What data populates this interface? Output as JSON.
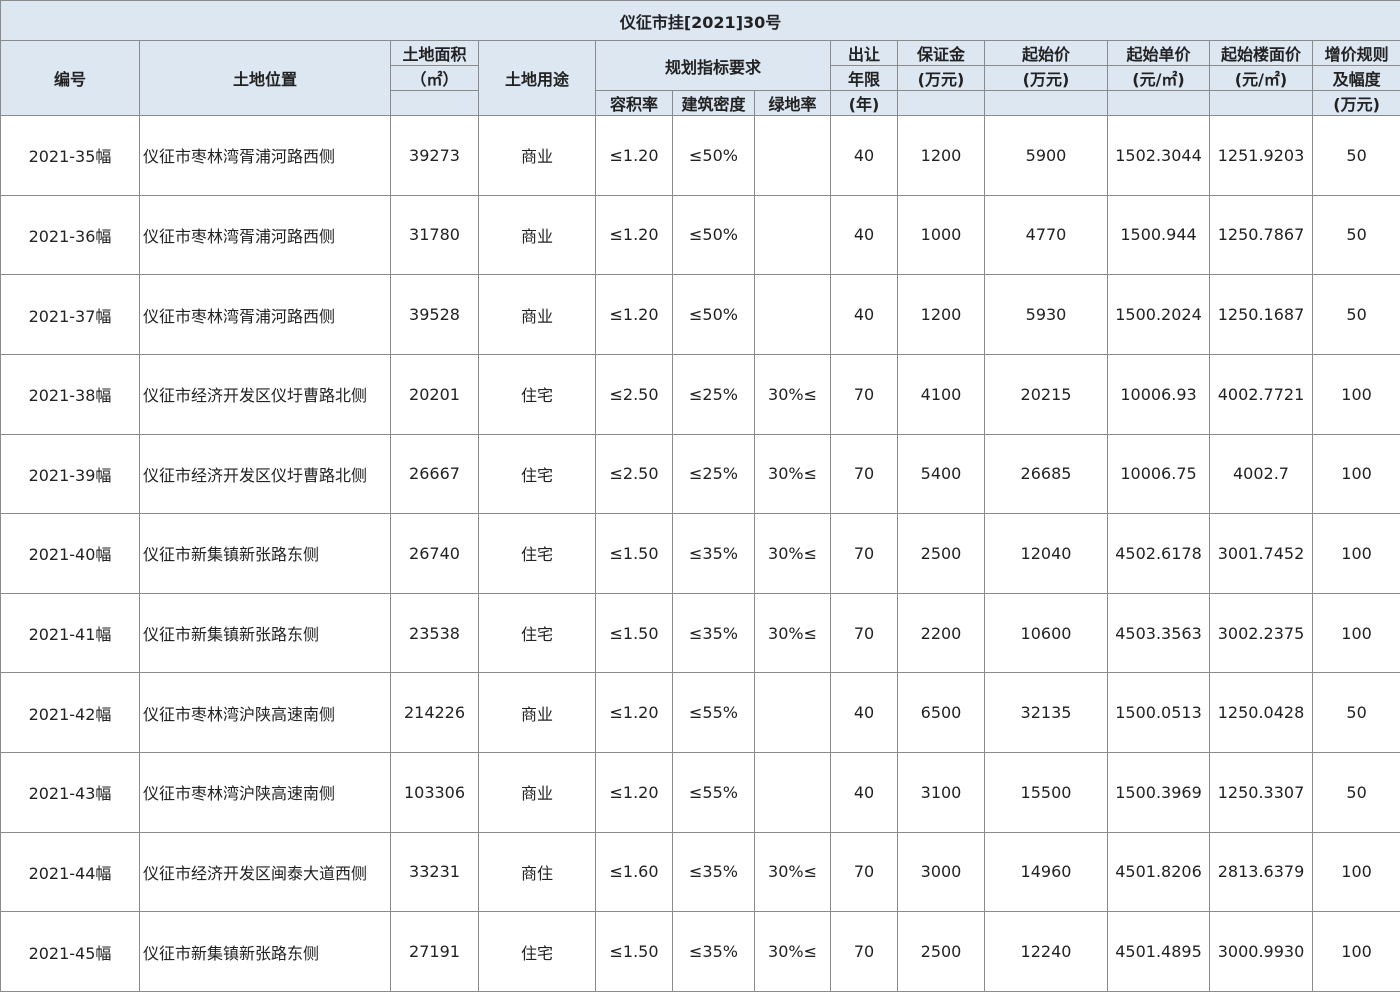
{
  "title": "仪征市挂[2021]30号",
  "header": {
    "id": "编号",
    "location": "土地位置",
    "area": "土地面积",
    "area_unit": "（㎡）",
    "use": "土地用途",
    "planning": "规划指标要求",
    "far": "容积率",
    "density": "建筑密度",
    "green": "绿地率",
    "term": "出让",
    "term2": "年限",
    "term_unit": "(年)",
    "deposit": "保证金",
    "deposit_unit": "(万元)",
    "start": "起始价",
    "start_unit": "(万元)",
    "unit_price": "起始单价",
    "unit_price_unit": "(元/㎡)",
    "floor_price": "起始楼面价",
    "floor_price_unit": "(元/㎡)",
    "increment": "增价规则",
    "increment2": "及幅度",
    "increment_unit": "(万元)"
  },
  "rows": [
    [
      "2021-35幅",
      "仪征市枣林湾胥浦河路西侧",
      "39273",
      "商业",
      "≤1.20",
      "≤50%",
      null,
      "40",
      "1200",
      "5900",
      "1502.3044",
      "1251.9203",
      "50"
    ],
    [
      "2021-36幅",
      "仪征市枣林湾胥浦河路西侧",
      "31780",
      "商业",
      "≤1.20",
      "≤50%",
      null,
      "40",
      "1000",
      "4770",
      "1500.944",
      "1250.7867",
      "50"
    ],
    [
      "2021-37幅",
      "仪征市枣林湾胥浦河路西侧",
      "39528",
      "商业",
      "≤1.20",
      "≤50%",
      null,
      "40",
      "1200",
      "5930",
      "1500.2024",
      "1250.1687",
      "50"
    ],
    [
      "2021-38幅",
      "仪征市经济开发区仪圩曹路北侧",
      "20201",
      "住宅",
      "≤2.50",
      "≤25%",
      "30%≤",
      "70",
      "4100",
      "20215",
      "10006.93",
      "4002.7721",
      "100"
    ],
    [
      "2021-39幅",
      "仪征市经济开发区仪圩曹路北侧",
      "26667",
      "住宅",
      "≤2.50",
      "≤25%",
      "30%≤",
      "70",
      "5400",
      "26685",
      "10006.75",
      "4002.7",
      "100"
    ],
    [
      "2021-40幅",
      "仪征市新集镇新张路东侧",
      "26740",
      "住宅",
      "≤1.50",
      "≤35%",
      "30%≤",
      "70",
      "2500",
      "12040",
      "4502.6178",
      "3001.7452",
      "100"
    ],
    [
      "2021-41幅",
      "仪征市新集镇新张路东侧",
      "23538",
      "住宅",
      "≤1.50",
      "≤35%",
      "30%≤",
      "70",
      "2200",
      "10600",
      "4503.3563",
      "3002.2375",
      "100"
    ],
    [
      "2021-42幅",
      "仪征市枣林湾沪陕高速南侧",
      "214226",
      "商业",
      "≤1.20",
      "≤55%",
      null,
      "40",
      "6500",
      "32135",
      "1500.0513",
      "1250.0428",
      "50"
    ],
    [
      "2021-43幅",
      "仪征市枣林湾沪陕高速南侧",
      "103306",
      "商业",
      "≤1.20",
      "≤55%",
      null,
      "40",
      "3100",
      "15500",
      "1500.3969",
      "1250.3307",
      "50"
    ],
    [
      "2021-44幅",
      "仪征市经济开发区闽泰大道西侧",
      "33231",
      "商住",
      "≤1.60",
      "≤35%",
      "30%≤",
      "70",
      "3000",
      "14960",
      "4501.8206",
      "2813.6379",
      "100"
    ],
    [
      "2021-45幅",
      "仪征市新集镇新张路东侧",
      "27191",
      "住宅",
      "≤1.50",
      "≤35%",
      "30%≤",
      "70",
      "2500",
      "12240",
      "4501.4895",
      "3000.9930",
      "100"
    ]
  ]
}
